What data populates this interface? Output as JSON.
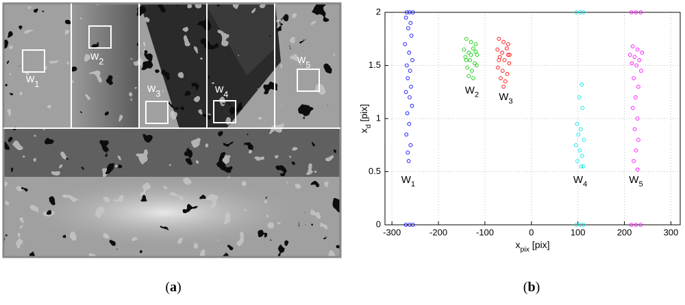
{
  "panel_a": {
    "caption_open": "(",
    "caption_letter": "a",
    "caption_close": ")",
    "windows": [
      {
        "label": "w",
        "index": "1"
      },
      {
        "label": "w",
        "index": "2"
      },
      {
        "label": "w",
        "index": "3"
      },
      {
        "label": "w",
        "index": "4"
      },
      {
        "label": "w",
        "index": "5"
      }
    ]
  },
  "chart_data": {
    "type": "scatter",
    "caption_open": "(",
    "caption_letter": "b",
    "caption_close": ")",
    "xlabel": {
      "text": "x",
      "sub": "pix",
      "unit": " [pix]"
    },
    "ylabel": {
      "text": "x",
      "sub": "d",
      "unit": " [pix]"
    },
    "xlim": [
      -315,
      320
    ],
    "xticks": [
      -300,
      -200,
      -100,
      0,
      100,
      200,
      300
    ],
    "ylim": [
      0,
      2
    ],
    "yticks": [
      0,
      0.5,
      1,
      1.5,
      2
    ],
    "grid": true,
    "series": [
      {
        "name": "W",
        "subscript": "1",
        "color": "#0000ff",
        "x": [
          -268,
          -262,
          -255,
          -270,
          -260,
          -265,
          -258,
          -272,
          -263,
          -256,
          -268,
          -261,
          -266,
          -259,
          -270,
          -262,
          -257,
          -267,
          -263,
          -269,
          -260,
          -266,
          -264,
          -270,
          -262,
          -255
        ],
        "values": [
          2,
          2,
          2,
          1.95,
          1.9,
          1.85,
          1.78,
          1.7,
          1.62,
          1.55,
          1.5,
          1.45,
          1.38,
          1.3,
          1.25,
          1.2,
          1.12,
          1.05,
          0.95,
          0.85,
          0.75,
          0.68,
          0.6,
          0,
          0,
          0
        ]
      },
      {
        "name": "W",
        "subscript": "2",
        "color": "#00cc00",
        "x": [
          -140,
          -130,
          -120,
          -145,
          -135,
          -125,
          -117,
          -142,
          -132,
          -122,
          -138,
          -128,
          -118,
          -135,
          -125,
          -130,
          -140,
          -120
        ],
        "values": [
          1.75,
          1.72,
          1.7,
          1.65,
          1.62,
          1.66,
          1.6,
          1.58,
          1.55,
          1.52,
          1.48,
          1.45,
          1.5,
          1.4,
          1.38,
          1.6,
          1.55,
          1.63
        ]
      },
      {
        "name": "W",
        "subscript": "3",
        "color": "#ff0000",
        "x": [
          -70,
          -60,
          -50,
          -73,
          -63,
          -53,
          -47,
          -68,
          -58,
          -48,
          -72,
          -62,
          -52,
          -66,
          -56,
          -60,
          -70,
          -50
        ],
        "values": [
          1.75,
          1.72,
          1.7,
          1.65,
          1.62,
          1.66,
          1.6,
          1.58,
          1.55,
          1.52,
          1.48,
          1.45,
          1.42,
          1.38,
          1.35,
          1.3,
          1.55,
          1.6
        ]
      },
      {
        "name": "W",
        "subscript": "4",
        "color": "#00e5e5",
        "x": [
          97,
          105,
          112,
          108,
          103,
          110,
          98,
          106,
          101,
          113,
          96,
          104,
          109,
          99,
          107,
          112,
          97,
          105,
          112
        ],
        "values": [
          2,
          2,
          2,
          1.32,
          1.2,
          1.1,
          0.95,
          0.9,
          0.85,
          0.8,
          0.75,
          0.7,
          0.65,
          0.6,
          0.55,
          0.55,
          0,
          0,
          0
        ]
      },
      {
        "name": "W",
        "subscript": "5",
        "color": "#ff00ff",
        "x": [
          215,
          225,
          235,
          218,
          228,
          238,
          212,
          222,
          232,
          216,
          226,
          236,
          220,
          230,
          224,
          218,
          228,
          222,
          230,
          225,
          220,
          228,
          215,
          225,
          235
        ],
        "values": [
          2,
          2,
          2,
          1.68,
          1.65,
          1.62,
          1.6,
          1.58,
          1.55,
          1.52,
          1.5,
          1.45,
          1.38,
          1.3,
          1.2,
          1.1,
          1.0,
          0.9,
          0.8,
          0.7,
          0.6,
          0.52,
          0,
          0,
          0
        ]
      }
    ]
  }
}
